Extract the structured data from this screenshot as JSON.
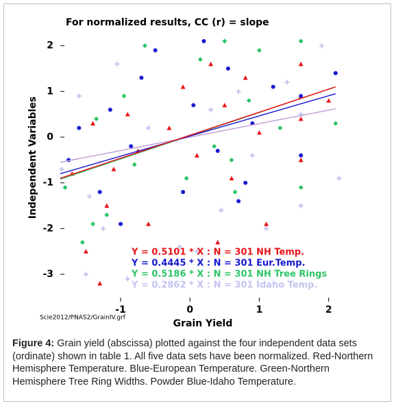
{
  "chart_data": {
    "type": "scatter",
    "title": "For normalized results, CC (r) = slope",
    "xlabel": "Grain Yield",
    "ylabel": "Independent Variables",
    "source_note": "Scie2012/PNAS2/GrainIV.grf",
    "xlim": [
      -1.87,
      2.25
    ],
    "ylim": [
      -3.6,
      2.7
    ],
    "xticks": [
      -1,
      0,
      1,
      2
    ],
    "yticks": [
      2,
      1,
      0,
      -1,
      -2,
      -3
    ],
    "series": [
      {
        "marker": "triangle",
        "color": "#e81418",
        "x": [
          -1.7,
          -1.5,
          -1.4,
          -1.2,
          -1.1,
          -0.9,
          -0.75,
          -0.6,
          -0.3,
          -0.1,
          0.1,
          0.3,
          0.5,
          0.6,
          0.8,
          1.0,
          1.1,
          1.6,
          1.6,
          1.6,
          1.6,
          2.0,
          -1.3,
          0.4
        ],
        "values": [
          -0.8,
          -2.5,
          0.3,
          -1.5,
          -0.7,
          0.5,
          -0.3,
          -1.9,
          0.2,
          1.1,
          -0.4,
          1.6,
          0.7,
          -0.9,
          1.3,
          0.1,
          -1.9,
          0.9,
          0.4,
          -0.5,
          1.6,
          0.8,
          -3.2,
          -2.3
        ]
      },
      {
        "marker": "circle",
        "color": "#1818d0",
        "x": [
          -1.75,
          -1.6,
          -1.3,
          -1.15,
          -1.0,
          -0.85,
          -0.7,
          -0.1,
          0.05,
          0.2,
          0.4,
          0.55,
          0.7,
          0.9,
          1.2,
          1.6,
          1.6,
          2.1,
          -0.5,
          0.8
        ],
        "values": [
          -0.5,
          0.2,
          -1.2,
          0.6,
          -1.9,
          -0.2,
          1.3,
          -1.2,
          0.7,
          2.1,
          -0.3,
          1.5,
          -1.4,
          0.3,
          1.1,
          0.9,
          -0.4,
          1.4,
          1.9,
          -1.0
        ]
      },
      {
        "marker": "diamond",
        "color": "#2ec468",
        "x": [
          -1.8,
          -1.55,
          -1.35,
          -1.2,
          -0.95,
          -0.8,
          -0.65,
          -0.05,
          0.15,
          0.35,
          0.5,
          0.65,
          0.85,
          1.0,
          1.3,
          1.6,
          1.6,
          2.1,
          -1.4,
          0.6
        ],
        "values": [
          -1.1,
          -2.3,
          0.4,
          -1.7,
          0.9,
          -0.6,
          2.0,
          -0.9,
          1.7,
          -0.2,
          2.1,
          -1.2,
          0.8,
          1.9,
          0.2,
          2.1,
          -1.1,
          0.3,
          -1.9,
          -0.5
        ]
      },
      {
        "marker": "plus",
        "color": "#c4c4f0",
        "x": [
          -1.85,
          -1.6,
          -1.45,
          -1.25,
          -1.05,
          -0.9,
          -0.6,
          -0.15,
          0.1,
          0.3,
          0.45,
          0.7,
          0.9,
          1.1,
          1.4,
          1.6,
          1.6,
          2.15,
          -1.5,
          1.9
        ],
        "values": [
          -0.7,
          0.9,
          -1.3,
          -2.0,
          1.6,
          -3.1,
          0.2,
          -2.4,
          -2.5,
          0.6,
          -1.6,
          1.0,
          -0.4,
          -2.0,
          1.2,
          -1.5,
          0.5,
          -0.9,
          -3.0,
          2.0
        ]
      }
    ],
    "fit_lines": [
      {
        "color": "#c0a0d8",
        "x": [
          -1.87,
          2.1
        ],
        "y": [
          -0.55,
          0.62
        ]
      },
      {
        "color": "#2ec468",
        "x": [
          -1.87,
          2.1
        ],
        "y": [
          -0.92,
          1.1
        ]
      },
      {
        "color": "#1818d0",
        "x": [
          -1.87,
          2.1
        ],
        "y": [
          -0.8,
          0.95
        ]
      },
      {
        "color": "#e81418",
        "x": [
          -1.87,
          2.1
        ],
        "y": [
          -0.9,
          1.1
        ]
      }
    ],
    "annotations": [
      {
        "text": "Y = 0.5101 * X : N = 301 NH Temp.",
        "color": "#e81418"
      },
      {
        "text": "Y = 0.4445 * X : N = 301 Eur.Temp.",
        "color": "#1818d0"
      },
      {
        "text": "Y = 0.5186 * X : N = 301 NH Tree Rings",
        "color": "#2ec468"
      },
      {
        "text": "Y = 0.2862 * X : N = 301 Idaho Temp.",
        "color": "#c4c4f0"
      }
    ]
  },
  "caption": {
    "label": "Figure 4:",
    "text": "Grain yield (abscissa) plotted against the four independent data sets (ordinate) shown in table 1. All five data sets have been normalized. Red-Northern Hemisphere Temperature. Blue-European Temperature. Green-Northern Hemisphere Tree Ring Widths. Powder Blue-Idaho Temperature."
  }
}
